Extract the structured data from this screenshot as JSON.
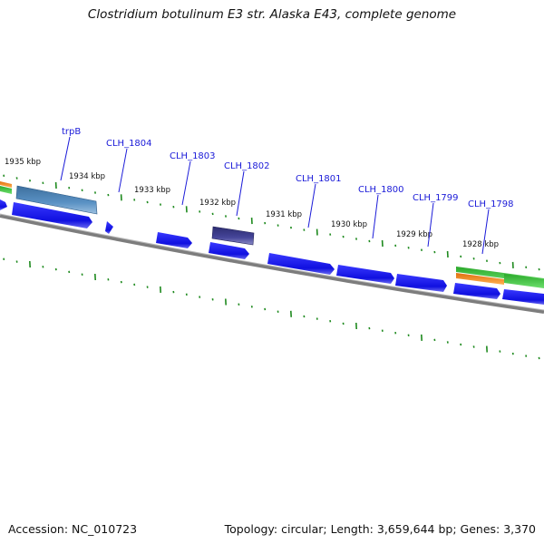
{
  "title": "Clostridium botulinum E3 str. Alaska E43, complete genome",
  "footer": {
    "accession": "Accession: NC_010723",
    "summary": "Topology: circular; Length: 3,659,644 bp; Genes: 3,370"
  },
  "ticks": [
    {
      "label": "1935 kbp"
    },
    {
      "label": "1934 kbp"
    },
    {
      "label": "1933 kbp"
    },
    {
      "label": "1932 kbp"
    },
    {
      "label": "1931 kbp"
    },
    {
      "label": "1930 kbp"
    },
    {
      "label": "1929 kbp"
    },
    {
      "label": "1928 kbp"
    }
  ],
  "genes": [
    {
      "label": "trpB"
    },
    {
      "label": "CLH_1804"
    },
    {
      "label": "CLH_1803"
    },
    {
      "label": "CLH_1802"
    },
    {
      "label": "CLH_1801"
    },
    {
      "label": "CLH_1800"
    },
    {
      "label": "CLH_1799"
    },
    {
      "label": "CLH_1798"
    }
  ],
  "colors": {
    "cds": "#1414e6",
    "trpB": "#4f86b8",
    "clh1802": "#3b3b85",
    "tick": "#1e8a1e",
    "backbone": "#7d7d7d",
    "label": "#1a1ad8",
    "orange": "#f08a1c",
    "green": "#3cc23c"
  }
}
